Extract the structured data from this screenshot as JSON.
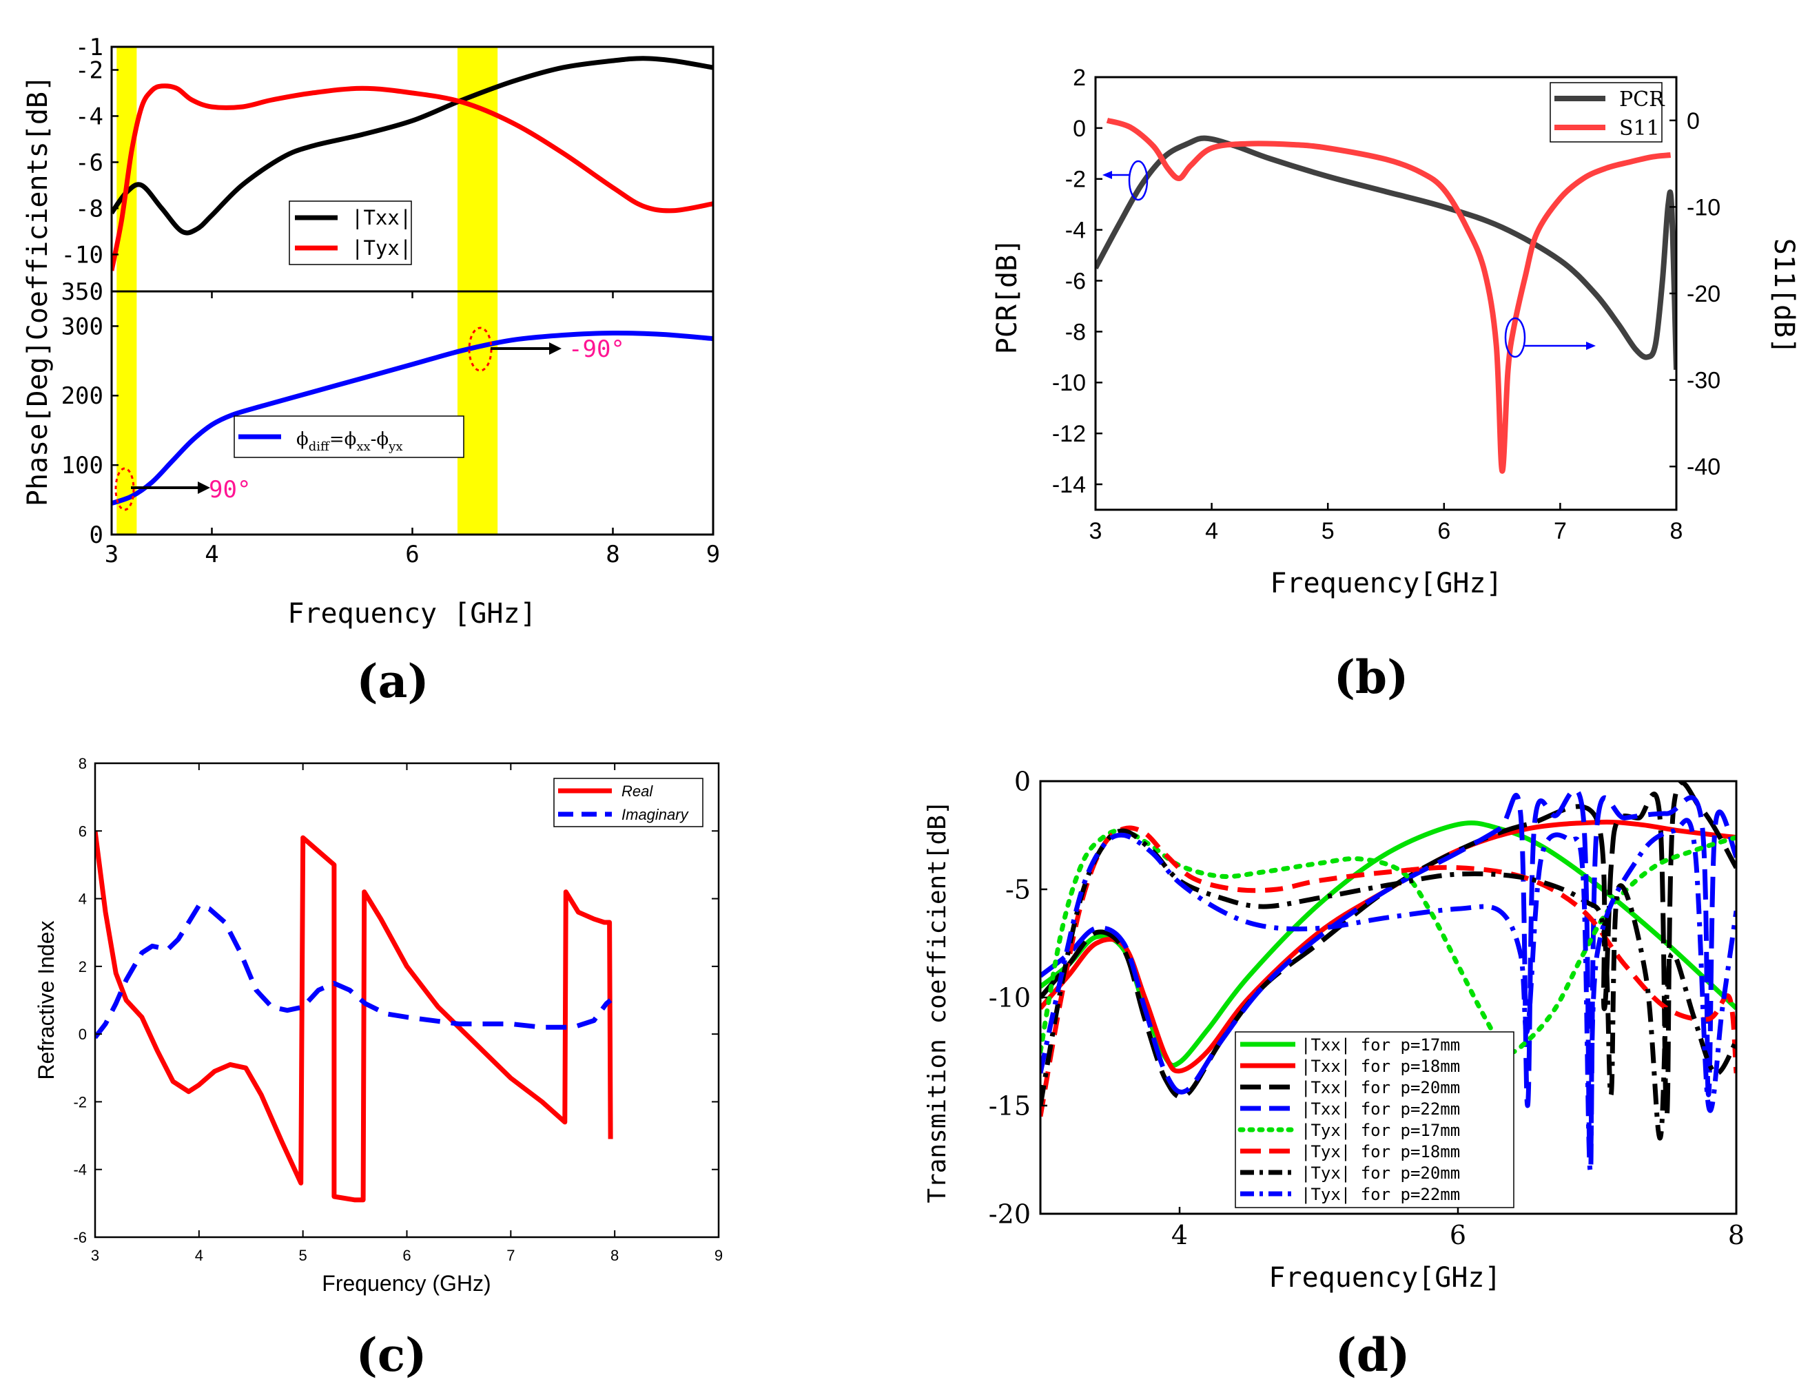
{
  "panels": {
    "a": {
      "label": "(a)"
    },
    "b": {
      "label": "(b)"
    },
    "c": {
      "label": "(c)"
    },
    "d": {
      "label": "(d)"
    }
  },
  "chart_data": [
    {
      "id": "a",
      "type": "line",
      "xlabel": "Frequency [GHz]",
      "ylabel": "Phase[Deg]Coefficients[dB]",
      "xlim": [
        3,
        9
      ],
      "xticks": [
        "3",
        "4",
        "6",
        "8",
        "9"
      ],
      "xtick_values": [
        3,
        4,
        6,
        8,
        9
      ],
      "highlight_bands": [
        [
          3.05,
          3.25
        ],
        [
          6.45,
          6.85
        ]
      ],
      "highlight_color": "#ffff00",
      "top": {
        "ylim": [
          -11.6,
          -1
        ],
        "yticks": [
          "-1",
          "-2",
          "-4",
          "-6",
          "-8",
          "-10"
        ],
        "ytick_values": [
          -1,
          -2,
          -4,
          -6,
          -8,
          -10
        ],
        "legend": [
          "|Txx|",
          "|Tyx|"
        ],
        "series": [
          {
            "name": "|Txx|",
            "color": "#000000",
            "x": [
              3.0,
              3.15,
              3.3,
              3.5,
              3.7,
              3.85,
              4.0,
              4.3,
              4.7,
              5.0,
              5.5,
              6.0,
              6.5,
              7.0,
              7.5,
              8.0,
              8.3,
              8.6,
              9.0
            ],
            "y": [
              -8.2,
              -7.3,
              -7.0,
              -8.0,
              -9.0,
              -8.9,
              -8.3,
              -7.0,
              -5.8,
              -5.3,
              -4.8,
              -4.2,
              -3.3,
              -2.5,
              -1.9,
              -1.6,
              -1.5,
              -1.6,
              -1.9
            ]
          },
          {
            "name": "|Tyx|",
            "color": "#ff0000",
            "x": [
              3.0,
              3.1,
              3.2,
              3.3,
              3.4,
              3.5,
              3.65,
              3.8,
              4.0,
              4.3,
              4.6,
              5.0,
              5.5,
              6.0,
              6.5,
              7.0,
              7.5,
              8.0,
              8.3,
              8.6,
              9.0
            ],
            "y": [
              -10.7,
              -8.5,
              -5.5,
              -3.6,
              -2.9,
              -2.7,
              -2.8,
              -3.3,
              -3.6,
              -3.6,
              -3.3,
              -3.0,
              -2.8,
              -3.0,
              -3.4,
              -4.3,
              -5.6,
              -7.1,
              -7.9,
              -8.1,
              -7.8
            ]
          }
        ]
      },
      "bottom": {
        "ylim": [
          0,
          350
        ],
        "yticks": [
          "0",
          "100",
          "200",
          "300",
          "350"
        ],
        "ytick_values": [
          0,
          100,
          200,
          300,
          350
        ],
        "legend": [
          "ϕdiff=ϕxx-ϕyx"
        ],
        "series": [
          {
            "name": "ϕdiff=ϕxx-ϕyx",
            "color": "#0000ff",
            "x": [
              3.0,
              3.2,
              3.4,
              3.6,
              3.8,
              4.0,
              4.2,
              4.5,
              5.0,
              5.5,
              6.0,
              6.5,
              7.0,
              7.5,
              8.0,
              8.5,
              9.0
            ],
            "y": [
              45,
              55,
              75,
              105,
              135,
              158,
              172,
              185,
              205,
              225,
              245,
              265,
              280,
              287,
              290,
              288,
              282
            ]
          }
        ],
        "annotations": [
          {
            "text": "90°",
            "x": 3.15,
            "y": 58
          },
          {
            "text": "-90°",
            "x": 6.65,
            "y": 267
          }
        ]
      }
    },
    {
      "id": "b",
      "type": "line",
      "xlabel": "Frequency[GHz]",
      "ylabel_left": "PCR[dB]",
      "ylabel_right": "S11[dB]",
      "xlim": [
        3,
        8
      ],
      "xticks": [
        "3",
        "4",
        "5",
        "6",
        "7",
        "8"
      ],
      "ylim_left": [
        -15,
        2
      ],
      "yticks_left": [
        "2",
        "0",
        "-2",
        "-4",
        "-6",
        "-8",
        "-10",
        "-12",
        "-14"
      ],
      "ylim_right": [
        -45,
        5
      ],
      "yticks_right": [
        "0",
        "-10",
        "-20",
        "-30",
        "-40"
      ],
      "legend": [
        "PCR",
        "S11"
      ],
      "series": [
        {
          "name": "PCR",
          "axis": "left",
          "color": "#404040",
          "x": [
            3.0,
            3.2,
            3.4,
            3.6,
            3.8,
            3.95,
            4.2,
            4.5,
            5.0,
            5.5,
            6.0,
            6.5,
            7.0,
            7.3,
            7.5,
            7.65,
            7.75,
            7.82,
            7.88,
            7.93,
            7.96,
            8.0
          ],
          "y": [
            -5.5,
            -3.8,
            -2.2,
            -1.1,
            -0.6,
            -0.4,
            -0.7,
            -1.2,
            -1.9,
            -2.5,
            -3.1,
            -3.9,
            -5.2,
            -6.5,
            -7.7,
            -8.7,
            -9.0,
            -8.5,
            -6.0,
            -3.0,
            -3.2,
            -9.5
          ]
        },
        {
          "name": "S11",
          "axis": "right",
          "color": "#ff4040",
          "x": [
            3.1,
            3.3,
            3.5,
            3.62,
            3.72,
            3.82,
            4.0,
            4.3,
            4.7,
            5.0,
            5.5,
            5.8,
            6.0,
            6.2,
            6.35,
            6.45,
            6.5,
            6.55,
            6.6,
            6.7,
            6.8,
            7.0,
            7.2,
            7.4,
            7.6,
            7.8,
            7.95
          ],
          "y": [
            0.0,
            -0.8,
            -3.0,
            -5.5,
            -6.7,
            -5.2,
            -3.2,
            -2.7,
            -2.8,
            -3.2,
            -4.5,
            -6.0,
            -8.0,
            -12.5,
            -17.5,
            -26.0,
            -40.5,
            -29.0,
            -24.0,
            -18.0,
            -13.0,
            -9.0,
            -6.7,
            -5.5,
            -4.8,
            -4.2,
            -4.0
          ]
        }
      ],
      "annotations": [
        {
          "text": "←",
          "near": "PCR",
          "x": 3.35,
          "y": -2.1
        },
        {
          "text": "→",
          "near": "S11",
          "x": 6.6,
          "y": -25.5
        }
      ]
    },
    {
      "id": "c",
      "type": "line",
      "xlabel": "Frequency (GHz)",
      "ylabel": "Refractive Index",
      "xlim": [
        3,
        9
      ],
      "xticks": [
        "3",
        "4",
        "5",
        "6",
        "7",
        "8",
        "9"
      ],
      "ylim": [
        -6,
        8
      ],
      "yticks": [
        "8",
        "6",
        "4",
        "2",
        "0",
        "-2",
        "-4",
        "-6"
      ],
      "legend": [
        "Real",
        "Imaginary"
      ],
      "series": [
        {
          "name": "Real",
          "color": "#ff0000",
          "style": "solid",
          "x": [
            3.0,
            3.1,
            3.2,
            3.3,
            3.45,
            3.6,
            3.75,
            3.9,
            4.0,
            4.15,
            4.3,
            4.45,
            4.6,
            4.8,
            4.98,
            5.0,
            5.15,
            5.3,
            5.3,
            5.5,
            5.58,
            5.59,
            5.75,
            6.0,
            6.3,
            6.7,
            7.0,
            7.3,
            7.52,
            7.53,
            7.65,
            7.8,
            7.9,
            7.92,
            7.95,
            7.96
          ],
          "y": [
            6.0,
            3.6,
            1.8,
            1.0,
            0.5,
            -0.5,
            -1.4,
            -1.7,
            -1.5,
            -1.1,
            -0.9,
            -1.0,
            -1.8,
            -3.2,
            -4.4,
            5.8,
            5.4,
            5.0,
            -4.8,
            -4.9,
            -4.9,
            4.2,
            3.4,
            2.0,
            0.8,
            -0.4,
            -1.3,
            -2.0,
            -2.6,
            4.2,
            3.6,
            3.4,
            3.3,
            3.3,
            3.3,
            -3.1
          ]
        },
        {
          "name": "Imaginary",
          "color": "#0000ff",
          "style": "dashed",
          "x": [
            3.0,
            3.1,
            3.2,
            3.3,
            3.45,
            3.55,
            3.7,
            3.8,
            3.9,
            4.0,
            4.1,
            4.25,
            4.4,
            4.55,
            4.7,
            4.85,
            5.0,
            5.15,
            5.3,
            5.45,
            5.6,
            5.8,
            6.0,
            6.5,
            7.0,
            7.3,
            7.6,
            7.8,
            7.92,
            7.96
          ],
          "y": [
            -0.1,
            0.3,
            0.9,
            1.6,
            2.4,
            2.6,
            2.5,
            2.8,
            3.3,
            3.8,
            3.7,
            3.3,
            2.4,
            1.3,
            0.8,
            0.7,
            0.8,
            1.3,
            1.5,
            1.3,
            0.9,
            0.6,
            0.5,
            0.3,
            0.3,
            0.2,
            0.2,
            0.4,
            0.9,
            1.0
          ]
        }
      ]
    },
    {
      "id": "d",
      "type": "line",
      "xlabel": "Frequency[GHz]",
      "ylabel": "Transmition coefficient[dB]",
      "xlim": [
        3,
        8
      ],
      "xticks": [
        "4",
        "6",
        "8"
      ],
      "xtick_values": [
        4,
        6,
        8
      ],
      "ylim": [
        -20,
        0
      ],
      "yticks": [
        "0",
        "-5",
        "-10",
        "-15",
        "-20"
      ],
      "ytick_values": [
        0,
        -5,
        -10,
        -15,
        -20
      ],
      "legend": [
        "|Txx|  for p=17mm",
        "|Txx|  for p=18mm",
        "|Txx|  for p=20mm",
        "|Txx|  for p=22mm",
        "|Tyx|  for p=17mm",
        "|Tyx|  for p=18mm",
        "|Tyx|  for p=20mm",
        "|Tyx|  for p=22mm"
      ],
      "series": [
        {
          "name": "|Txx|  for p=17mm",
          "color": "#00e000",
          "style": "solid",
          "x": [
            3.0,
            3.2,
            3.4,
            3.6,
            3.75,
            3.9,
            4.0,
            4.2,
            4.5,
            5.0,
            5.5,
            6.0,
            6.3,
            6.6,
            7.0,
            7.5,
            8.0
          ],
          "y": [
            -9.5,
            -8.5,
            -7.2,
            -7.8,
            -10.5,
            -12.8,
            -13.0,
            -11.5,
            -9.0,
            -5.7,
            -3.3,
            -2.0,
            -2.2,
            -3.0,
            -4.8,
            -7.5,
            -10.5
          ]
        },
        {
          "name": "|Txx|  for p=18mm",
          "color": "#ff0000",
          "style": "solid",
          "x": [
            3.0,
            3.2,
            3.4,
            3.6,
            3.75,
            3.9,
            4.0,
            4.2,
            4.5,
            5.0,
            5.5,
            6.0,
            6.5,
            7.0,
            7.3,
            7.6,
            8.0
          ],
          "y": [
            -10.5,
            -9.0,
            -7.5,
            -7.6,
            -10.0,
            -12.7,
            -13.4,
            -12.5,
            -10.0,
            -7.0,
            -5.0,
            -3.2,
            -2.2,
            -1.9,
            -2.0,
            -2.3,
            -2.6
          ]
        },
        {
          "name": "|Txx|  for p=20mm",
          "color": "#000000",
          "style": "longdash",
          "x": [
            3.0,
            3.2,
            3.4,
            3.6,
            3.75,
            3.9,
            4.05,
            4.3,
            4.6,
            5.0,
            5.5,
            6.0,
            6.5,
            7.0,
            7.05,
            7.1,
            7.15,
            7.3,
            7.45,
            7.5,
            7.55,
            7.75,
            8.0
          ],
          "y": [
            -10.0,
            -8.5,
            -7.0,
            -7.8,
            -11.0,
            -13.8,
            -14.5,
            -12.0,
            -9.5,
            -7.5,
            -5.0,
            -3.2,
            -2.0,
            -1.8,
            -10.5,
            -4.0,
            -1.8,
            -1.7,
            -1.6,
            -15.5,
            -1.2,
            -1.3,
            -4.0
          ]
        },
        {
          "name": "|Txx|  for p=22mm",
          "color": "#0000ff",
          "style": "longdash",
          "x": [
            3.0,
            3.2,
            3.4,
            3.6,
            3.75,
            3.9,
            4.05,
            4.3,
            4.6,
            5.0,
            5.5,
            6.0,
            6.3,
            6.45,
            6.5,
            6.55,
            6.7,
            6.9,
            6.95,
            7.0,
            7.2,
            7.5,
            7.75,
            7.8,
            7.85,
            8.0
          ],
          "y": [
            -9.0,
            -8.0,
            -6.8,
            -7.5,
            -10.5,
            -13.5,
            -14.3,
            -12.0,
            -9.5,
            -7.2,
            -5.0,
            -3.3,
            -2.2,
            -1.5,
            -15.0,
            -2.0,
            -1.6,
            -1.6,
            -17.5,
            -2.0,
            -1.7,
            -1.5,
            -1.8,
            -14.5,
            -2.0,
            -3.5
          ]
        },
        {
          "name": "|Tyx|  for p=17mm",
          "color": "#00e000",
          "style": "dotted",
          "x": [
            3.0,
            3.15,
            3.3,
            3.45,
            3.6,
            3.8,
            4.0,
            4.3,
            4.6,
            5.0,
            5.3,
            5.6,
            5.8,
            6.0,
            6.2,
            6.35,
            6.5,
            6.7,
            6.9,
            7.1,
            7.4,
            7.7,
            8.0
          ],
          "y": [
            -12.5,
            -7.0,
            -3.8,
            -2.6,
            -2.3,
            -3.0,
            -3.9,
            -4.4,
            -4.2,
            -3.8,
            -3.6,
            -4.2,
            -6.0,
            -8.5,
            -11.0,
            -12.5,
            -12.0,
            -10.5,
            -8.0,
            -5.8,
            -4.0,
            -3.2,
            -2.6
          ]
        },
        {
          "name": "|Tyx|  for p=18mm",
          "color": "#ff0000",
          "style": "dashed",
          "x": [
            3.0,
            3.15,
            3.3,
            3.45,
            3.6,
            3.75,
            3.9,
            4.1,
            4.4,
            4.7,
            5.0,
            5.5,
            6.0,
            6.5,
            6.9,
            7.2,
            7.5,
            7.8,
            7.95,
            8.0
          ],
          "y": [
            -15.5,
            -10.0,
            -5.5,
            -3.0,
            -2.2,
            -2.4,
            -3.4,
            -4.5,
            -5.0,
            -5.0,
            -4.6,
            -4.2,
            -4.0,
            -4.5,
            -6.0,
            -8.5,
            -10.5,
            -11.0,
            -10.0,
            -13.5
          ]
        },
        {
          "name": "|Tyx|  for p=20mm",
          "color": "#000000",
          "style": "dashdot",
          "x": [
            3.0,
            3.15,
            3.3,
            3.45,
            3.6,
            3.8,
            4.0,
            4.3,
            4.6,
            5.0,
            5.5,
            6.0,
            6.5,
            6.9,
            7.05,
            7.1,
            7.15,
            7.35,
            7.45,
            7.5,
            7.55,
            7.7,
            7.85,
            8.0
          ],
          "y": [
            -15.0,
            -9.5,
            -5.2,
            -3.0,
            -2.3,
            -3.2,
            -4.6,
            -5.4,
            -5.8,
            -5.4,
            -4.8,
            -4.3,
            -4.5,
            -5.5,
            -7.0,
            -14.5,
            -5.0,
            -9.0,
            -16.5,
            -10.0,
            -8.0,
            -11.0,
            -13.5,
            -12.0
          ]
        },
        {
          "name": "|Tyx|  for p=22mm",
          "color": "#0000ff",
          "style": "dashdot",
          "x": [
            3.0,
            3.15,
            3.3,
            3.45,
            3.6,
            3.8,
            4.0,
            4.3,
            4.6,
            5.0,
            5.5,
            6.0,
            6.3,
            6.45,
            6.5,
            6.6,
            6.8,
            6.9,
            6.95,
            7.0,
            7.3,
            7.55,
            7.7,
            7.8,
            7.9,
            8.0
          ],
          "y": [
            -13.5,
            -9.0,
            -5.0,
            -3.0,
            -2.5,
            -3.3,
            -4.7,
            -6.0,
            -6.7,
            -6.8,
            -6.3,
            -5.9,
            -6.0,
            -8.0,
            -11.5,
            -3.5,
            -2.7,
            -4.5,
            -18.0,
            -8.0,
            -3.5,
            -2.3,
            -3.0,
            -15.0,
            -10.5,
            -6.0
          ]
        }
      ]
    }
  ]
}
